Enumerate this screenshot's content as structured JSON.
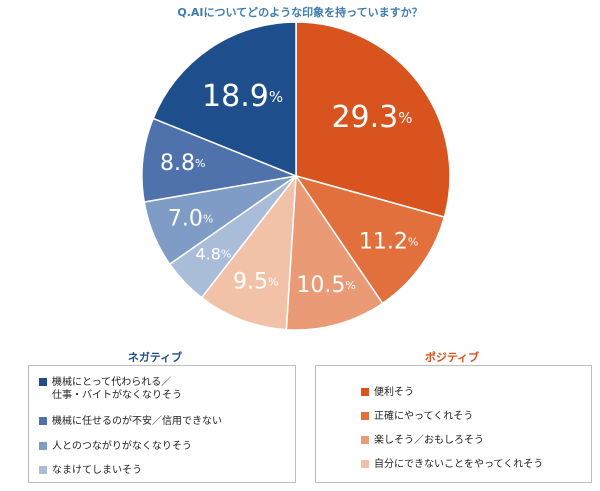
{
  "title": "Q.AIについてどのような印象を持っていますか？",
  "chart_data": {
    "type": "pie",
    "slices": [
      {
        "label": "便利そう",
        "value": 29.3,
        "display": "29.3",
        "color": "#d9531e",
        "group": "positive"
      },
      {
        "label": "正確にやってくれそう",
        "value": 11.2,
        "display": "11.2",
        "color": "#e2703c",
        "group": "positive"
      },
      {
        "label": "楽しそう／おもしろそう",
        "value": 10.5,
        "display": "10.5",
        "color": "#ea9a74",
        "group": "positive"
      },
      {
        "label": "自分にできないことをやってくれそう",
        "value": 9.5,
        "display": "9.5",
        "color": "#f2c2a8",
        "group": "positive"
      },
      {
        "label": "なまけてしまいそう",
        "value": 4.8,
        "display": "4.8",
        "color": "#a9bcd8",
        "group": "negative"
      },
      {
        "label": "人とのつながりがなくなりそう",
        "value": 7.0,
        "display": "7.0",
        "color": "#7f9cc6",
        "group": "negative"
      },
      {
        "label": "機械に任せるのが不安／信用できない",
        "value": 8.8,
        "display": "8.8",
        "color": "#4f72ac",
        "group": "negative"
      },
      {
        "label": "機械にとって代わられる／仕事・バイトがなくなりそう",
        "value": 18.9,
        "display": "18.9",
        "color": "#1f4e8c",
        "group": "negative"
      }
    ],
    "unit": "%"
  },
  "legend": {
    "negative_title": "ネガティブ",
    "positive_title": "ポジティブ",
    "negative_items": [
      {
        "label": "機械にとって代わられる／\n仕事・バイトがなくなりそう",
        "color": "#1f4e8c"
      },
      {
        "label": "機械に任せるのが不安／信用できない",
        "color": "#4f72ac"
      },
      {
        "label": "人とのつながりがなくなりそう",
        "color": "#7f9cc6"
      },
      {
        "label": "なまけてしまいそう",
        "color": "#a9bcd8"
      }
    ],
    "positive_items": [
      {
        "label": "便利そう",
        "color": "#d9531e"
      },
      {
        "label": "正確にやってくれそう",
        "color": "#e2703c"
      },
      {
        "label": "楽しそう／おもしろそう",
        "color": "#ea9a74"
      },
      {
        "label": "自分にできないことをやってくれそう",
        "color": "#f2c2a8"
      }
    ]
  }
}
